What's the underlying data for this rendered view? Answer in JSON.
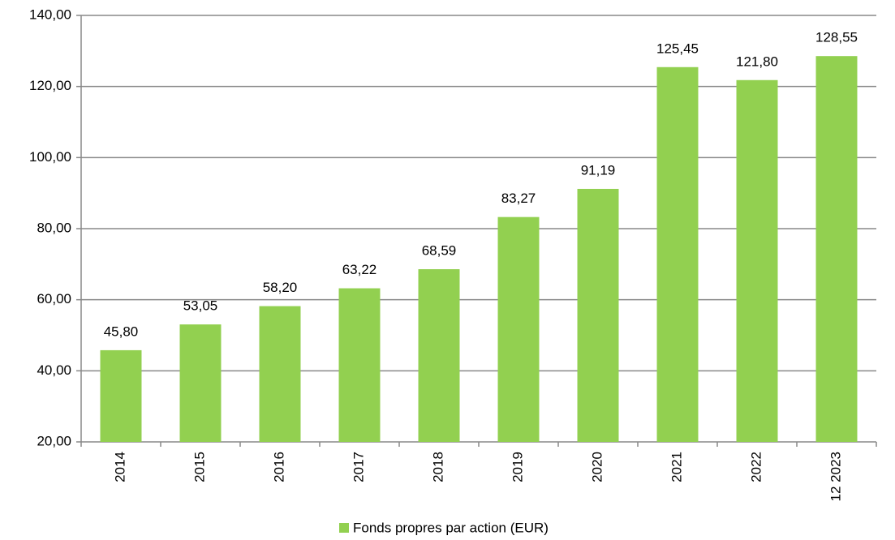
{
  "chart_data": {
    "type": "bar",
    "categories": [
      "2014",
      "2015",
      "2016",
      "2017",
      "2018",
      "2019",
      "2020",
      "2021",
      "2022",
      "12 2023"
    ],
    "series": [
      {
        "name": "Fonds propres par action (EUR)",
        "color": "#92d050",
        "values": [
          45.8,
          53.05,
          58.2,
          63.22,
          68.59,
          83.27,
          91.19,
          125.45,
          121.8,
          128.55
        ],
        "value_labels": [
          "45,80",
          "53,05",
          "58,20",
          "63,22",
          "68,59",
          "83,27",
          "91,19",
          "125,45",
          "121,80",
          "128,55"
        ]
      }
    ],
    "ylim": [
      20,
      140
    ],
    "yticks": [
      {
        "value": 20,
        "label": "20,00"
      },
      {
        "value": 40,
        "label": "40,00"
      },
      {
        "value": 60,
        "label": "60,00"
      },
      {
        "value": 80,
        "label": "80,00"
      },
      {
        "value": 100,
        "label": "100,00"
      },
      {
        "value": 120,
        "label": "120,00"
      },
      {
        "value": 140,
        "label": "140,00"
      }
    ],
    "grid": true,
    "legend": "bottom"
  }
}
